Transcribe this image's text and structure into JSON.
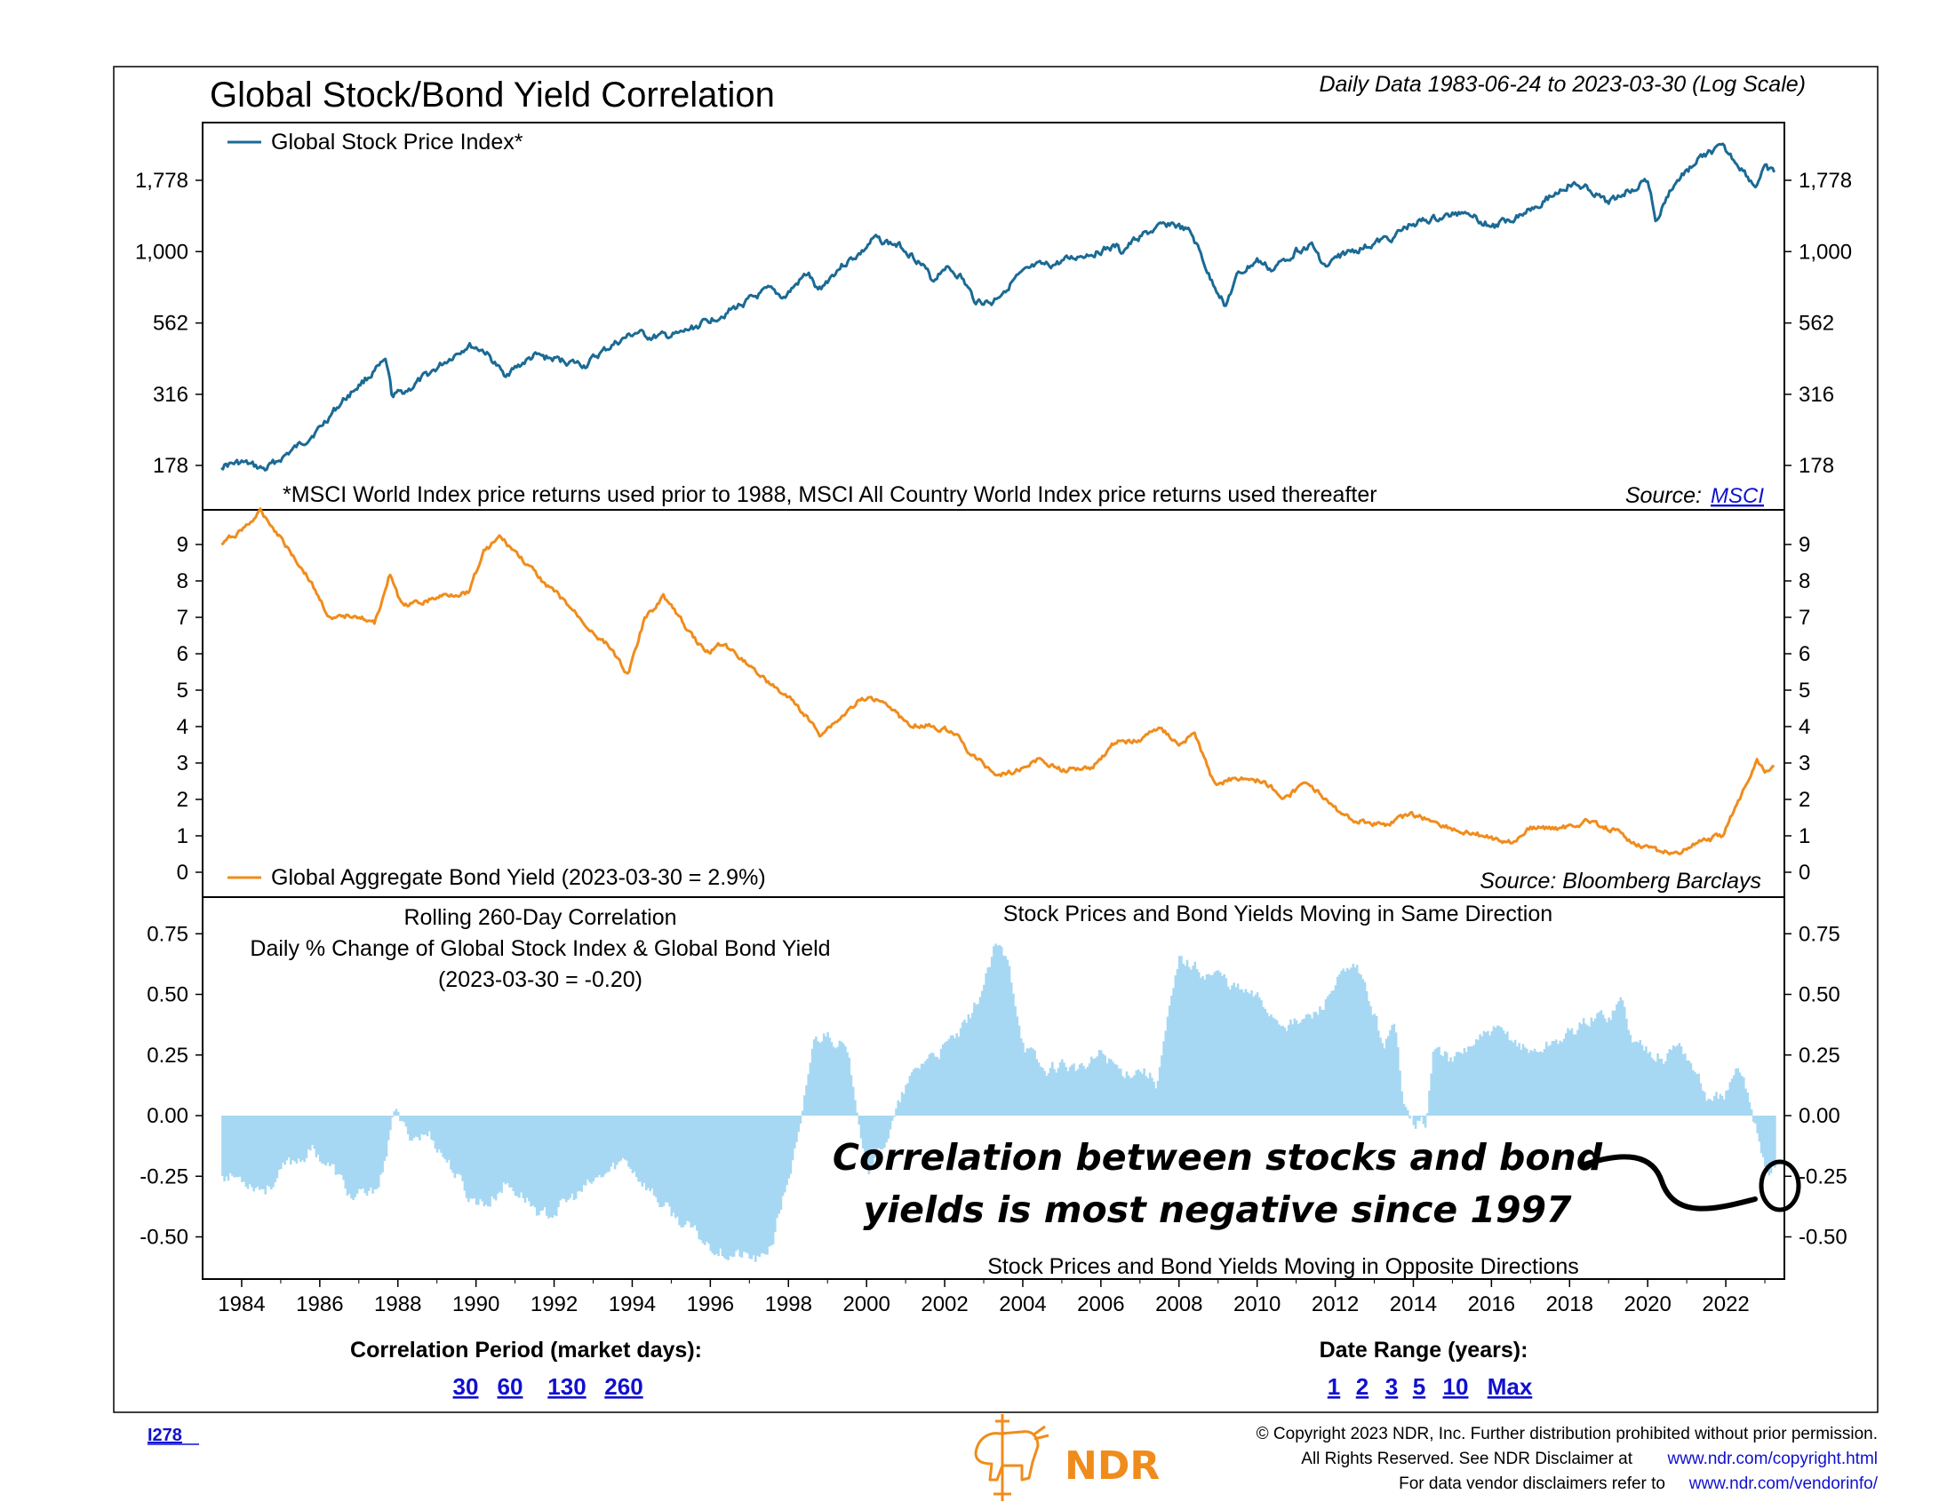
{
  "title": "Global Stock/Bond Yield Correlation",
  "subtitle": "Daily Data 1983-06-24 to 2023-03-30 (Log Scale)",
  "colors": {
    "stock": "#1a6a94",
    "bond": "#f08c1c",
    "corr": "#a7d8f3",
    "link": "#1010d0"
  },
  "chart_data": [
    {
      "type": "line",
      "panel": "stock",
      "legend": "Global Stock Price Index*",
      "footnote": "*MSCI World Index price returns used prior to 1988, MSCI All Country World Index price returns used thereafter",
      "source_label": "Source:",
      "source_link": "MSCI",
      "y_scale": "log",
      "y_ticks": [
        {
          "value": 178,
          "label": "178"
        },
        {
          "value": 316,
          "label": "316"
        },
        {
          "value": 562,
          "label": "562"
        },
        {
          "value": 1000,
          "label": "1,000"
        },
        {
          "value": 1778,
          "label": "1,778"
        }
      ],
      "points": [
        [
          1983.48,
          178
        ],
        [
          1984.0,
          182
        ],
        [
          1984.6,
          172
        ],
        [
          1985.0,
          188
        ],
        [
          1985.5,
          210
        ],
        [
          1986.0,
          240
        ],
        [
          1986.5,
          290
        ],
        [
          1987.0,
          340
        ],
        [
          1987.7,
          410
        ],
        [
          1987.85,
          310
        ],
        [
          1988.3,
          330
        ],
        [
          1989.0,
          390
        ],
        [
          1989.8,
          470
        ],
        [
          1990.2,
          450
        ],
        [
          1990.7,
          370
        ],
        [
          1991.0,
          390
        ],
        [
          1991.5,
          430
        ],
        [
          1992.0,
          420
        ],
        [
          1992.8,
          400
        ],
        [
          1993.5,
          470
        ],
        [
          1994.1,
          520
        ],
        [
          1994.5,
          500
        ],
        [
          1995.2,
          510
        ],
        [
          1995.8,
          560
        ],
        [
          1996.5,
          620
        ],
        [
          1997.5,
          730
        ],
        [
          1997.9,
          690
        ],
        [
          1998.5,
          840
        ],
        [
          1998.75,
          720
        ],
        [
          1999.3,
          880
        ],
        [
          1999.9,
          1000
        ],
        [
          2000.2,
          1110
        ],
        [
          2000.9,
          1040
        ],
        [
          2001.3,
          940
        ],
        [
          2001.7,
          790
        ],
        [
          2002.0,
          890
        ],
        [
          2002.4,
          820
        ],
        [
          2002.75,
          680
        ],
        [
          2003.2,
          660
        ],
        [
          2003.8,
          800
        ],
        [
          2004.3,
          880
        ],
        [
          2004.8,
          900
        ],
        [
          2005.5,
          970
        ],
        [
          2006.4,
          1040
        ],
        [
          2006.5,
          990
        ],
        [
          2007.0,
          1130
        ],
        [
          2007.8,
          1260
        ],
        [
          2008.3,
          1160
        ],
        [
          2008.8,
          800
        ],
        [
          2009.2,
          650
        ],
        [
          2009.5,
          820
        ],
        [
          2010.0,
          930
        ],
        [
          2010.4,
          860
        ],
        [
          2011.0,
          1010
        ],
        [
          2011.4,
          1050
        ],
        [
          2011.75,
          880
        ],
        [
          2012.2,
          980
        ],
        [
          2012.8,
          1040
        ],
        [
          2013.5,
          1130
        ],
        [
          2014.0,
          1260
        ],
        [
          2014.8,
          1320
        ],
        [
          2015.4,
          1400
        ],
        [
          2015.8,
          1260
        ],
        [
          2016.1,
          1230
        ],
        [
          2016.8,
          1370
        ],
        [
          2017.5,
          1560
        ],
        [
          2018.0,
          1720
        ],
        [
          2018.5,
          1660
        ],
        [
          2018.95,
          1470
        ],
        [
          2019.5,
          1640
        ],
        [
          2020.0,
          1780
        ],
        [
          2020.22,
          1250
        ],
        [
          2020.6,
          1660
        ],
        [
          2021.0,
          1920
        ],
        [
          2021.5,
          2200
        ],
        [
          2021.9,
          2300
        ],
        [
          2022.3,
          2040
        ],
        [
          2022.75,
          1690
        ],
        [
          2023.0,
          1940
        ],
        [
          2023.24,
          1880
        ]
      ]
    },
    {
      "type": "line",
      "panel": "bond",
      "legend": "Global Aggregate Bond Yield (2023-03-30 = 2.9%)",
      "source": "Source: Bloomberg Barclays",
      "y_ticks": [
        0,
        1,
        2,
        3,
        4,
        5,
        6,
        7,
        8,
        9
      ],
      "points": [
        [
          1983.48,
          9.0
        ],
        [
          1984.0,
          9.4
        ],
        [
          1984.5,
          9.9
        ],
        [
          1985.0,
          9.2
        ],
        [
          1985.7,
          8.1
        ],
        [
          1986.3,
          6.9
        ],
        [
          1986.9,
          7.1
        ],
        [
          1987.4,
          6.8
        ],
        [
          1987.8,
          8.2
        ],
        [
          1988.1,
          7.3
        ],
        [
          1988.6,
          7.4
        ],
        [
          1989.2,
          7.6
        ],
        [
          1989.8,
          7.7
        ],
        [
          1990.2,
          8.8
        ],
        [
          1990.6,
          9.2
        ],
        [
          1991.0,
          8.8
        ],
        [
          1991.6,
          8.1
        ],
        [
          1992.2,
          7.5
        ],
        [
          1992.9,
          6.7
        ],
        [
          1993.5,
          6.1
        ],
        [
          1993.9,
          5.4
        ],
        [
          1994.3,
          6.9
        ],
        [
          1994.8,
          7.6
        ],
        [
          1995.4,
          6.7
        ],
        [
          1995.9,
          6.0
        ],
        [
          1996.3,
          6.3
        ],
        [
          1996.9,
          5.8
        ],
        [
          1997.5,
          5.2
        ],
        [
          1998.2,
          4.6
        ],
        [
          1998.8,
          3.8
        ],
        [
          1999.3,
          4.2
        ],
        [
          1999.8,
          4.7
        ],
        [
          2000.4,
          4.8
        ],
        [
          2001.0,
          4.1
        ],
        [
          2001.7,
          4.0
        ],
        [
          2002.2,
          3.9
        ],
        [
          2002.7,
          3.2
        ],
        [
          2003.3,
          2.7
        ],
        [
          2003.9,
          2.8
        ],
        [
          2004.4,
          3.1
        ],
        [
          2005.0,
          2.8
        ],
        [
          2005.8,
          2.9
        ],
        [
          2006.4,
          3.6
        ],
        [
          2007.0,
          3.6
        ],
        [
          2007.5,
          4.0
        ],
        [
          2008.0,
          3.5
        ],
        [
          2008.4,
          3.8
        ],
        [
          2008.9,
          2.4
        ],
        [
          2009.5,
          2.6
        ],
        [
          2010.2,
          2.5
        ],
        [
          2010.7,
          2.0
        ],
        [
          2011.3,
          2.5
        ],
        [
          2011.9,
          1.8
        ],
        [
          2012.5,
          1.4
        ],
        [
          2013.3,
          1.3
        ],
        [
          2013.9,
          1.6
        ],
        [
          2014.5,
          1.4
        ],
        [
          2015.2,
          1.1
        ],
        [
          2015.8,
          1.0
        ],
        [
          2016.5,
          0.8
        ],
        [
          2017.0,
          1.2
        ],
        [
          2017.8,
          1.2
        ],
        [
          2018.5,
          1.4
        ],
        [
          2019.2,
          1.1
        ],
        [
          2019.7,
          0.8
        ],
        [
          2020.2,
          0.6
        ],
        [
          2020.7,
          0.5
        ],
        [
          2021.3,
          0.8
        ],
        [
          2021.9,
          1.0
        ],
        [
          2022.3,
          1.9
        ],
        [
          2022.8,
          3.1
        ],
        [
          2023.0,
          2.8
        ],
        [
          2023.24,
          2.9
        ]
      ]
    },
    {
      "type": "bar",
      "panel": "correlation",
      "label_line1": "Rolling 260-Day Correlation",
      "label_line2": "Daily % Change of Global Stock Index & Global Bond Yield",
      "label_line3": "(2023-03-30 = -0.20)",
      "top_note": "Stock Prices and Bond Yields Moving in Same Direction",
      "bottom_note": "Stock Prices and Bond Yields Moving in Opposite Directions",
      "annotation_line1": "Correlation between stocks and bond",
      "annotation_line2": "yields is most negative since 1997",
      "y_ticks": [
        {
          "value": 0.75,
          "label": "0.75"
        },
        {
          "value": 0.5,
          "label": "0.50"
        },
        {
          "value": 0.25,
          "label": "0.25"
        },
        {
          "value": 0,
          "label": "0.00"
        },
        {
          "value": -0.25,
          "label": "-0.25"
        },
        {
          "value": -0.5,
          "label": "-0.50"
        }
      ],
      "points": [
        [
          1983.48,
          -0.24
        ],
        [
          1984.0,
          -0.26
        ],
        [
          1984.6,
          -0.3
        ],
        [
          1985.2,
          -0.2
        ],
        [
          1985.8,
          -0.14
        ],
        [
          1986.3,
          -0.22
        ],
        [
          1986.8,
          -0.34
        ],
        [
          1987.3,
          -0.33
        ],
        [
          1987.7,
          -0.18
        ],
        [
          1987.85,
          0.04
        ],
        [
          1988.2,
          -0.08
        ],
        [
          1988.8,
          -0.08
        ],
        [
          1989.3,
          -0.2
        ],
        [
          1989.8,
          -0.34
        ],
        [
          1990.3,
          -0.36
        ],
        [
          1990.7,
          -0.28
        ],
        [
          1991.2,
          -0.33
        ],
        [
          1991.7,
          -0.42
        ],
        [
          1992.2,
          -0.37
        ],
        [
          1992.8,
          -0.3
        ],
        [
          1993.3,
          -0.24
        ],
        [
          1993.8,
          -0.18
        ],
        [
          1994.2,
          -0.26
        ],
        [
          1994.8,
          -0.38
        ],
        [
          1995.3,
          -0.45
        ],
        [
          1995.8,
          -0.52
        ],
        [
          1996.3,
          -0.56
        ],
        [
          1996.8,
          -0.58
        ],
        [
          1997.3,
          -0.6
        ],
        [
          1997.6,
          -0.5
        ],
        [
          1997.9,
          -0.3
        ],
        [
          1998.3,
          -0.05
        ],
        [
          1998.6,
          0.3
        ],
        [
          1999.0,
          0.35
        ],
        [
          1999.4,
          0.28
        ],
        [
          1999.7,
          0.08
        ],
        [
          2000.0,
          -0.22
        ],
        [
          2000.3,
          -0.15
        ],
        [
          2000.6,
          -0.05
        ],
        [
          2001.0,
          0.12
        ],
        [
          2001.5,
          0.24
        ],
        [
          2002.0,
          0.28
        ],
        [
          2002.5,
          0.36
        ],
        [
          2003.0,
          0.55
        ],
        [
          2003.3,
          0.7
        ],
        [
          2003.6,
          0.62
        ],
        [
          2004.0,
          0.3
        ],
        [
          2004.5,
          0.18
        ],
        [
          2005.0,
          0.22
        ],
        [
          2005.5,
          0.18
        ],
        [
          2006.0,
          0.26
        ],
        [
          2006.5,
          0.18
        ],
        [
          2007.0,
          0.2
        ],
        [
          2007.4,
          0.14
        ],
        [
          2007.7,
          0.4
        ],
        [
          2008.0,
          0.65
        ],
        [
          2008.5,
          0.6
        ],
        [
          2009.0,
          0.58
        ],
        [
          2009.5,
          0.52
        ],
        [
          2010.0,
          0.48
        ],
        [
          2010.5,
          0.4
        ],
        [
          2011.0,
          0.38
        ],
        [
          2011.5,
          0.42
        ],
        [
          2012.0,
          0.55
        ],
        [
          2012.5,
          0.6
        ],
        [
          2012.8,
          0.5
        ],
        [
          2013.2,
          0.3
        ],
        [
          2013.5,
          0.36
        ],
        [
          2013.7,
          0.1
        ],
        [
          2014.0,
          -0.02
        ],
        [
          2014.3,
          -0.03
        ],
        [
          2014.5,
          0.28
        ],
        [
          2015.0,
          0.22
        ],
        [
          2015.5,
          0.3
        ],
        [
          2016.0,
          0.34
        ],
        [
          2016.5,
          0.32
        ],
        [
          2017.0,
          0.26
        ],
        [
          2017.5,
          0.3
        ],
        [
          2018.0,
          0.34
        ],
        [
          2018.5,
          0.4
        ],
        [
          2019.0,
          0.42
        ],
        [
          2019.3,
          0.48
        ],
        [
          2019.6,
          0.3
        ],
        [
          2020.0,
          0.28
        ],
        [
          2020.4,
          0.24
        ],
        [
          2020.8,
          0.3
        ],
        [
          2021.2,
          0.18
        ],
        [
          2021.6,
          0.04
        ],
        [
          2022.0,
          0.1
        ],
        [
          2022.3,
          0.18
        ],
        [
          2022.6,
          0.06
        ],
        [
          2022.9,
          -0.14
        ],
        [
          2023.1,
          -0.24
        ],
        [
          2023.24,
          -0.2
        ]
      ]
    }
  ],
  "x_ticks": [
    "1984",
    "1986",
    "1988",
    "1990",
    "1992",
    "1994",
    "1996",
    "1998",
    "2000",
    "2002",
    "2004",
    "2006",
    "2008",
    "2010",
    "2012",
    "2014",
    "2016",
    "2018",
    "2020",
    "2022"
  ],
  "controls": {
    "correlation_label": "Correlation Period (market days):",
    "correlation_options": [
      "30",
      "60",
      "130",
      "260"
    ],
    "range_label": "Date Range (years):",
    "range_options": [
      "1",
      "2",
      "3",
      "5",
      "10",
      "Max"
    ]
  },
  "footer": {
    "chart_id": "I278",
    "logo_text": "NDR",
    "copyright_line1": "© Copyright 2023 NDR, Inc. Further distribution prohibited without prior permission.",
    "copyright_line2": "All Rights Reserved. See NDR Disclaimer at",
    "copyright_link2": "www.ndr.com/copyright.html",
    "copyright_line3": "For data vendor disclaimers refer to",
    "copyright_link3": "www.ndr.com/vendorinfo/"
  }
}
